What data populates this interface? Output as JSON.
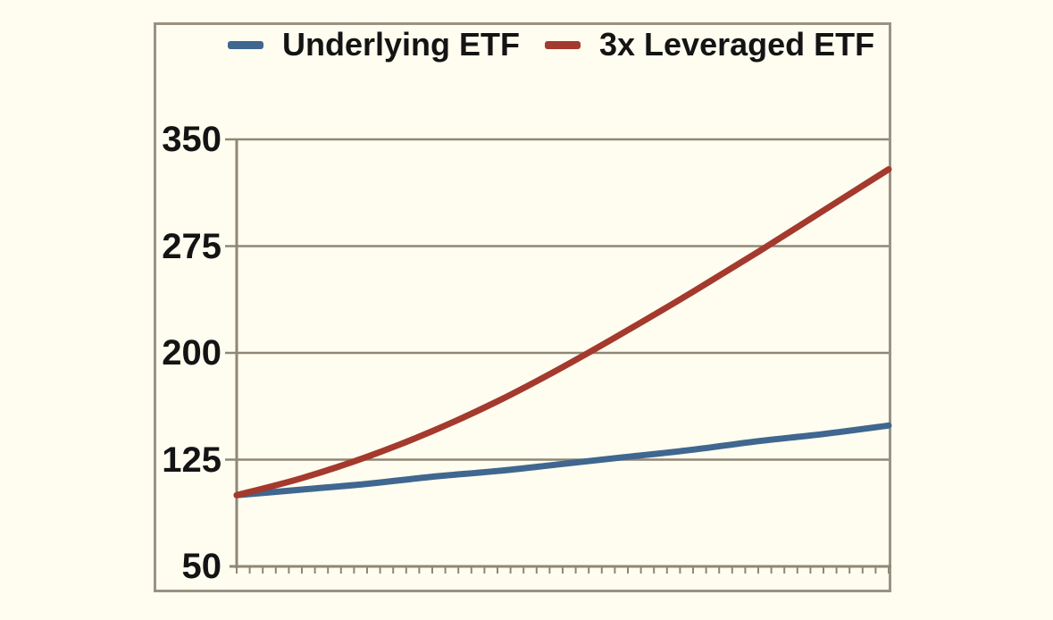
{
  "chart_data": {
    "type": "line",
    "title": "",
    "xlabel": "",
    "ylabel": "",
    "x": [
      0,
      5,
      10,
      15,
      20,
      25,
      30,
      35,
      40,
      45,
      50
    ],
    "xlim": [
      0,
      50
    ],
    "ylim": [
      50,
      350
    ],
    "yticks": [
      50,
      125,
      200,
      275,
      350
    ],
    "x_axis": {
      "minor_tick_count": 51,
      "labels_visible": false
    },
    "grid": "horizontal",
    "legend_position": "top",
    "series": [
      {
        "name": "Underlying ETF",
        "color": "#3f678f",
        "values": [
          100,
          104,
          108,
          113,
          117,
          122,
          127,
          132,
          138,
          143,
          149
        ]
      },
      {
        "name": "3x Leveraged ETF",
        "color": "#a4392d",
        "values": [
          100,
          112,
          127,
          145,
          166,
          190,
          216,
          243,
          271,
          300,
          329
        ]
      }
    ]
  },
  "colors": {
    "background": "#fffdf0",
    "frame_border": "#9a9282",
    "axis": "#8f8775",
    "text": "#141414"
  }
}
